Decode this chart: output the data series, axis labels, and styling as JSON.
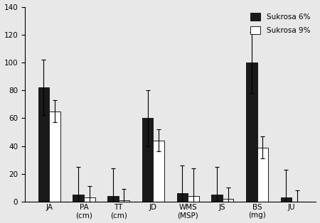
{
  "categories": [
    "JA",
    "PA\n(cm)",
    "TT\n(cm)",
    "JD",
    "WMS\n(MSP)",
    "JS",
    "BS\n(mg)",
    "JU"
  ],
  "sukrosa_6_values": [
    82,
    5,
    4,
    60,
    6,
    5,
    100,
    3
  ],
  "sukrosa_9_values": [
    65,
    3,
    1,
    44,
    4,
    2,
    39,
    0
  ],
  "sukrosa_6_errors": [
    20,
    20,
    20,
    20,
    20,
    20,
    22,
    20
  ],
  "sukrosa_9_errors": [
    8,
    8,
    8,
    8,
    20,
    8,
    8,
    8
  ],
  "color_6": "#1a1a1a",
  "color_9": "#ffffff",
  "edgecolor": "#1a1a1a",
  "legend_6": "Sukrosa 6%",
  "legend_9": "Sukrosa 9%",
  "ylim": [
    0,
    140
  ],
  "yticks": [
    0,
    20,
    40,
    60,
    80,
    100,
    120,
    140
  ],
  "bar_width": 0.32,
  "figsize": [
    4.5,
    3.14
  ],
  "dpi": 100
}
